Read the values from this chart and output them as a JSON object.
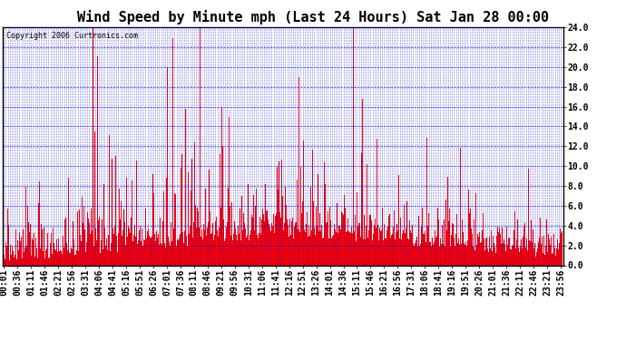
{
  "title": "Wind Speed by Minute mph (Last 24 Hours) Sat Jan 28 00:00",
  "copyright": "Copyright 2006 Curtronics.com",
  "yticks": [
    0.0,
    2.0,
    4.0,
    6.0,
    8.0,
    10.0,
    12.0,
    14.0,
    16.0,
    18.0,
    20.0,
    22.0,
    24.0
  ],
  "ylim": [
    0.0,
    24.0
  ],
  "bg_color": "#ffffff",
  "plot_bg_color": "#ffffff",
  "bar_color": "#ff0000",
  "grid_color": "#0000cc",
  "title_fontsize": 11,
  "copyright_fontsize": 6,
  "tick_label_fontsize": 7,
  "n_minutes": 1440,
  "label_interval": 35,
  "minor_grid_interval": 5
}
